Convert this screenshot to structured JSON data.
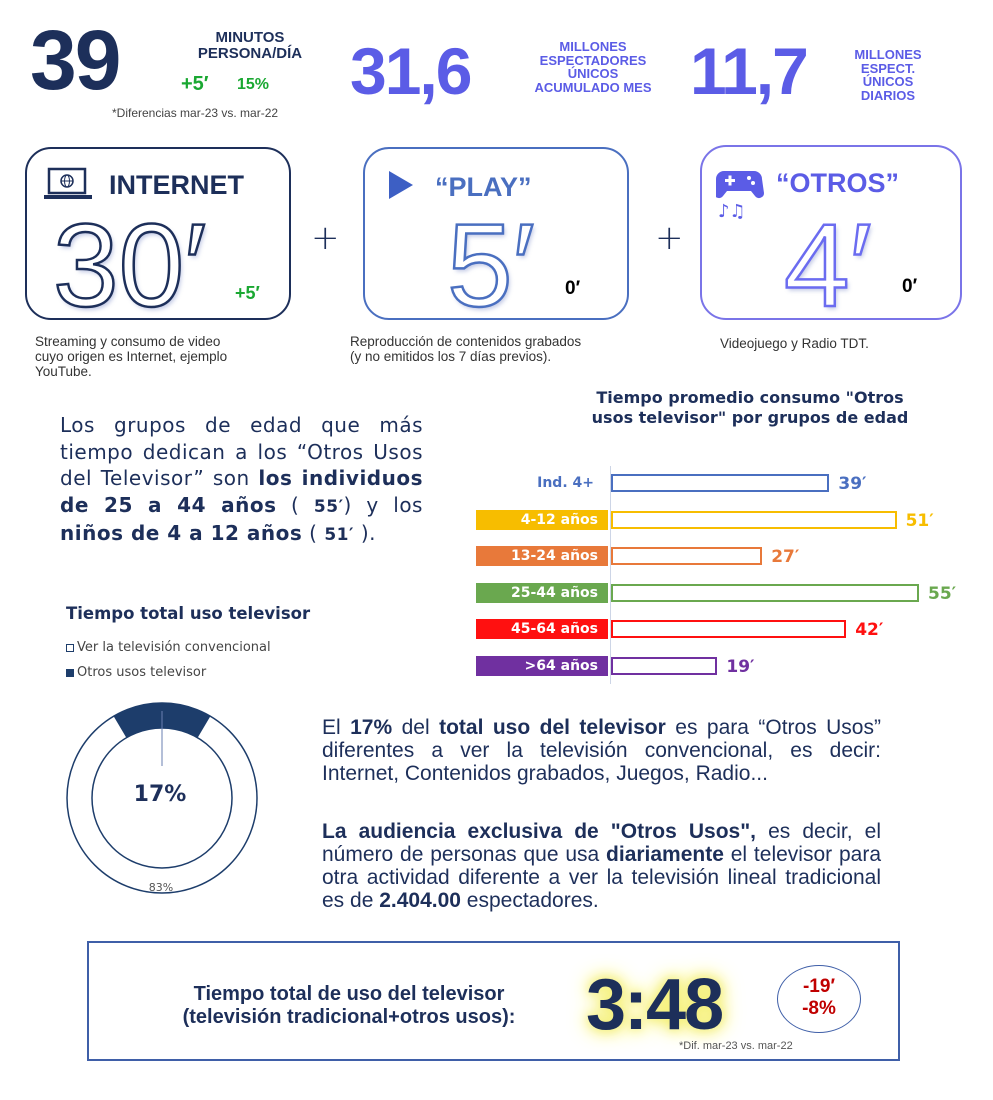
{
  "header": {
    "minutes_value": "39",
    "minutes_label_1": "MINUTOS",
    "minutes_label_2": "PERSONA/DÍA",
    "minutes_diff": "+5′",
    "minutes_diff_pct": "15%",
    "diff_note": "*Diferencias mar-23 vs. mar-22",
    "monthly_value": "31,6",
    "monthly_label": [
      "MILLONES",
      "ESPECTADORES",
      "ÚNICOS",
      "ACUMULADO MES"
    ],
    "daily_value": "11,7",
    "daily_label": [
      "MILLONES",
      "ESPECT.",
      "ÚNICOS",
      "DIARIOS"
    ]
  },
  "cards": [
    {
      "title": "INTERNET",
      "icon": "laptop-globe-icon",
      "value": "30′",
      "diff": "+5′",
      "desc": [
        "Streaming y consumo de video",
        "cuyo origen es Internet, ejemplo",
        "YouTube."
      ]
    },
    {
      "title": "“PLAY”",
      "icon": "play-icon",
      "value": "5′",
      "diff": "0′",
      "desc": [
        "Reproducción de contenidos grabados",
        "(y no emitidos los 7 días previos)."
      ]
    },
    {
      "title": "“OTROS”",
      "icon": "gamepad-music-icon",
      "value": "4′",
      "diff": "0′",
      "desc": [
        "Videojuego y Radio TDT."
      ]
    }
  ],
  "plus_sign": "+",
  "age_text": [
    "Los grupos de edad que más tiempo dedican a los “Otros Usos del Televisor”  son ",
    "los individuos de 25 a 44 años",
    " ( ",
    "55′",
    ") y los ",
    "niños de 4 a 12 años",
    " ( ",
    "51′",
    " )."
  ],
  "legend": {
    "title": "Tiempo total uso televisor",
    "items": [
      "Ver la televisión convencional",
      "Otros usos televisor"
    ]
  },
  "colors": {
    "navy": "#1d2f5a",
    "accent": "#5b5ce6",
    "green": "#1aa832",
    "red": "#c00000"
  },
  "chart_data": [
    {
      "type": "bar",
      "orientation": "horizontal",
      "title": "Tiempo promedio consumo \"Otros usos televisor\" por grupos de edad",
      "categories": [
        "Ind. 4+",
        "4-12 años",
        "13-24 años",
        "25-44 años",
        "45-64 años",
        ">64 años"
      ],
      "values": [
        39,
        51,
        27,
        55,
        42,
        19
      ],
      "value_labels": [
        "39′",
        "51′",
        "27′",
        "55′",
        "42′",
        "19′"
      ],
      "unit": "minutes",
      "colors": [
        "#4a6fc0",
        "#f7bd00",
        "#e8793a",
        "#6aa84f",
        "#ff1010",
        "#7030a0"
      ],
      "grid": false
    },
    {
      "type": "pie",
      "donut": true,
      "categories": [
        "Otros usos televisor",
        "Ver la televisión convencional"
      ],
      "values": [
        17,
        83
      ],
      "value_labels": [
        "17%",
        "83%"
      ],
      "colors": [
        "#1d3d6b",
        "#ffffff"
      ]
    }
  ],
  "share_text": {
    "p1": [
      "El ",
      "17%",
      " del ",
      "total uso del televisor",
      " es para “Otros Usos” diferentes a ver la televisión convencional, es decir: Internet, Contenidos grabados, Juegos, Radio..."
    ],
    "p2": [
      "La  audiencia exclusiva de \"Otros Usos\",",
      " es decir, el número de personas que usa ",
      "diariamente",
      " el televisor para otra actividad diferente a ver la televisión lineal tradicional es de ",
      "2.404.00",
      " espectadores."
    ]
  },
  "total": {
    "label_1": "Tiempo total de uso del televisor",
    "label_2": "(televisión tradicional+otros usos):",
    "value": "3:48",
    "diff_min": "-19′",
    "diff_pct": "-8%",
    "note": "*Dif. mar-23 vs. mar-22"
  }
}
